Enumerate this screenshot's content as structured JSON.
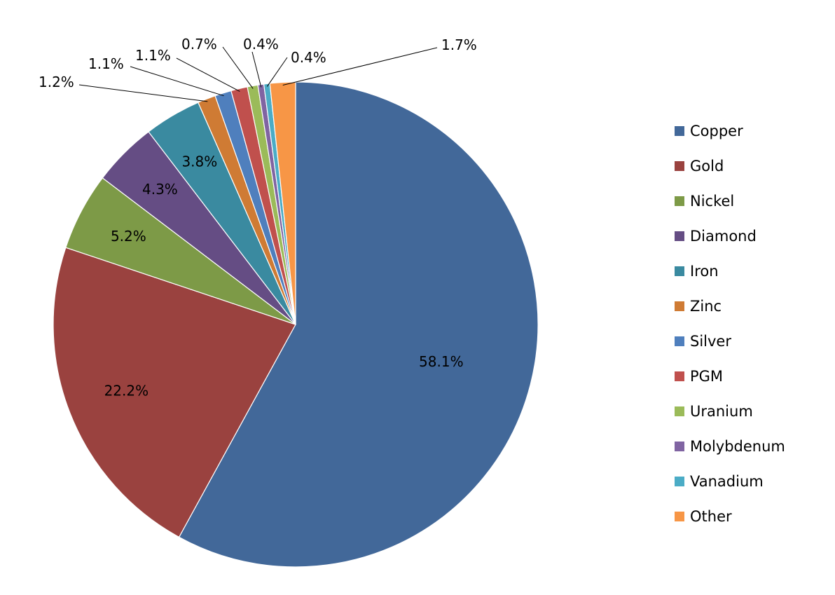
{
  "chart_data": {
    "type": "pie",
    "title": "",
    "legend_position": "right",
    "slices": [
      {
        "label": "Copper",
        "value": 58.1,
        "display": "58.1%",
        "color": "#426899"
      },
      {
        "label": "Gold",
        "value": 22.2,
        "display": "22.2%",
        "color": "#9a423f"
      },
      {
        "label": "Nickel",
        "value": 5.2,
        "display": "5.2%",
        "color": "#7d9a47"
      },
      {
        "label": "Diamond",
        "value": 4.3,
        "display": "4.3%",
        "color": "#654d84"
      },
      {
        "label": "Iron",
        "value": 3.8,
        "display": "3.8%",
        "color": "#3a8aa0"
      },
      {
        "label": "Zinc",
        "value": 1.2,
        "display": "1.2%",
        "color": "#cf7b34"
      },
      {
        "label": "Silver",
        "value": 1.1,
        "display": "1.1%",
        "color": "#4f7fbd"
      },
      {
        "label": "PGM",
        "value": 1.1,
        "display": "1.1%",
        "color": "#c0504d"
      },
      {
        "label": "Uranium",
        "value": 0.7,
        "display": "0.7%",
        "color": "#9bbb59"
      },
      {
        "label": "Molybdenum",
        "value": 0.4,
        "display": "0.4%",
        "color": "#8064a2"
      },
      {
        "label": "Vanadium",
        "value": 0.4,
        "display": "0.4%",
        "color": "#4bacc6"
      },
      {
        "label": "Other",
        "value": 1.7,
        "display": "1.7%",
        "color": "#f79646"
      }
    ]
  }
}
